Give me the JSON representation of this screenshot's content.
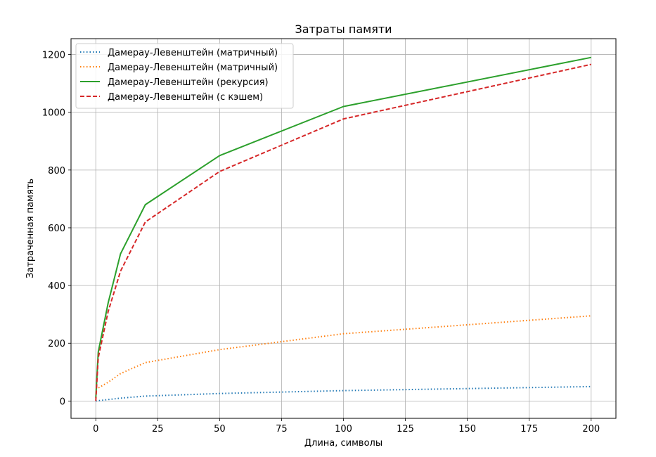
{
  "chart_data": {
    "type": "line",
    "title": "Затраты памяти",
    "xlabel": "Длина, символы",
    "ylabel": "Затраченная память",
    "xlim": [
      -10,
      210
    ],
    "ylim": [
      -60,
      1255
    ],
    "xticks": [
      0,
      25,
      50,
      75,
      100,
      125,
      150,
      175,
      200
    ],
    "yticks": [
      0,
      200,
      400,
      600,
      800,
      1000,
      1200
    ],
    "grid": true,
    "legend_position": "top-left",
    "series": [
      {
        "name": "Дамерау-Левенштейн (матричный)",
        "color": "#1f77b4",
        "style": "dotted",
        "x": [
          0,
          1,
          5,
          10,
          20,
          50,
          100,
          200
        ],
        "y": [
          0,
          1,
          5,
          10,
          17,
          26,
          36,
          50
        ]
      },
      {
        "name": "Дамерау-Левенштейн (матричный)",
        "color": "#ff7f0e",
        "style": "dotted",
        "x": [
          0,
          1,
          5,
          10,
          20,
          50,
          100,
          200
        ],
        "y": [
          40,
          45,
          65,
          95,
          133,
          178,
          233,
          295
        ]
      },
      {
        "name": "Дамерау-Левенштейн (рекурсия)",
        "color": "#2ca02c",
        "style": "solid",
        "x": [
          0,
          1,
          5,
          10,
          20,
          50,
          100,
          200
        ],
        "y": [
          10,
          170,
          340,
          510,
          680,
          850,
          1020,
          1190
        ]
      },
      {
        "name": "Дамерау-Левенштейн (с кэшем)",
        "color": "#d62728",
        "style": "dashed",
        "x": [
          0,
          1,
          5,
          10,
          20,
          50,
          100,
          200
        ],
        "y": [
          0,
          150,
          310,
          450,
          620,
          795,
          977,
          1166
        ]
      }
    ]
  }
}
